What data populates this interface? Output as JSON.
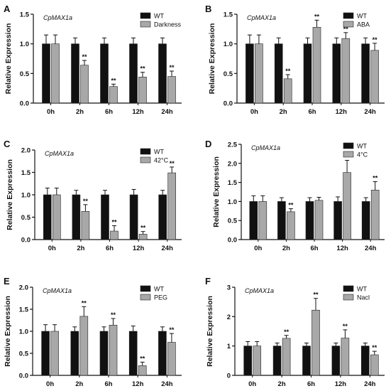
{
  "colors": {
    "wt_bar": "#111111",
    "treatment_bar": "#a8a8a8",
    "error_bar": "#111111",
    "axis": "#111111"
  },
  "chart_data": [
    {
      "type": "bar",
      "panel_label": "A",
      "gene": "CpMAX1a",
      "ylabel": "Relative Expression",
      "ylim": [
        0,
        1.5
      ],
      "yticks": [
        0.0,
        0.5,
        1.0,
        1.5
      ],
      "yticklabels": [
        "0.0",
        "0.5",
        "1.0",
        "1.5"
      ],
      "categories": [
        "0h",
        "2h",
        "6h",
        "12h",
        "24h"
      ],
      "legend_position": "top-right",
      "series": [
        {
          "name": "WT",
          "values": [
            1.0,
            1.0,
            1.0,
            1.0,
            1.0
          ],
          "errors": [
            0.15,
            0.1,
            0.1,
            0.1,
            0.1
          ],
          "significance": [
            "",
            "",
            "",
            "",
            ""
          ]
        },
        {
          "name": "Darkness",
          "values": [
            1.0,
            0.64,
            0.28,
            0.44,
            0.45
          ],
          "errors": [
            0.15,
            0.08,
            0.04,
            0.08,
            0.09
          ],
          "significance": [
            "",
            "**",
            "**",
            "**",
            "**"
          ]
        }
      ]
    },
    {
      "type": "bar",
      "panel_label": "B",
      "gene": "CpMAX1a",
      "ylabel": "Relative Expression",
      "ylim": [
        0,
        1.5
      ],
      "yticks": [
        0.0,
        0.5,
        1.0,
        1.5
      ],
      "yticklabels": [
        "0.0",
        "0.5",
        "1.0",
        "1.5"
      ],
      "categories": [
        "0h",
        "2h",
        "6h",
        "12h",
        "24h"
      ],
      "legend_position": "top-right",
      "series": [
        {
          "name": "WT",
          "values": [
            1.0,
            1.0,
            1.0,
            1.0,
            1.0
          ],
          "errors": [
            0.15,
            0.1,
            0.1,
            0.1,
            0.1
          ],
          "significance": [
            "",
            "",
            "",
            "",
            ""
          ]
        },
        {
          "name": "ABA",
          "values": [
            1.0,
            0.41,
            1.28,
            1.09,
            0.89
          ],
          "errors": [
            0.15,
            0.07,
            0.12,
            0.1,
            0.12
          ],
          "significance": [
            "",
            "**",
            "**",
            "**",
            "**"
          ]
        }
      ]
    },
    {
      "type": "bar",
      "panel_label": "C",
      "gene": "CpMAX1a",
      "ylabel": "Relative Expression",
      "ylim": [
        0,
        2.0
      ],
      "yticks": [
        0.0,
        0.5,
        1.0,
        1.5,
        2.0
      ],
      "yticklabels": [
        "0.0",
        "0.5",
        "1.0",
        "1.5",
        "2.0"
      ],
      "categories": [
        "0h",
        "2h",
        "6h",
        "12h",
        "24h"
      ],
      "legend_position": "top-right",
      "series": [
        {
          "name": "WT",
          "values": [
            1.0,
            1.0,
            1.0,
            1.0,
            1.0
          ],
          "errors": [
            0.15,
            0.1,
            0.1,
            0.12,
            0.1
          ],
          "significance": [
            "",
            "",
            "",
            "",
            ""
          ]
        },
        {
          "name": "42°C",
          "values": [
            1.0,
            0.63,
            0.19,
            0.12,
            1.49
          ],
          "errors": [
            0.15,
            0.15,
            0.12,
            0.06,
            0.13
          ],
          "significance": [
            "",
            "**",
            "**",
            "**",
            "**"
          ]
        }
      ]
    },
    {
      "type": "bar",
      "panel_label": "D",
      "gene": "CpMAX1a",
      "ylabel": "Relative Expression",
      "ylim": [
        0,
        2.5
      ],
      "yticks": [
        0.0,
        0.5,
        1.0,
        1.5,
        2.0,
        2.5
      ],
      "yticklabels": [
        "0.0",
        "0.5",
        "1.0",
        "1.5",
        "2.0",
        "2.5"
      ],
      "categories": [
        "0h",
        "2h",
        "6h",
        "12h",
        "24h"
      ],
      "legend_position": "top-right",
      "series": [
        {
          "name": "WT",
          "values": [
            1.0,
            1.0,
            1.0,
            1.0,
            1.0
          ],
          "errors": [
            0.15,
            0.1,
            0.1,
            0.12,
            0.1
          ],
          "significance": [
            "",
            "",
            "",
            "",
            ""
          ]
        },
        {
          "name": "4°C",
          "values": [
            1.0,
            0.73,
            1.03,
            1.76,
            1.3
          ],
          "errors": [
            0.15,
            0.08,
            0.08,
            0.32,
            0.22
          ],
          "significance": [
            "",
            "**",
            "",
            "**",
            "**"
          ]
        }
      ]
    },
    {
      "type": "bar",
      "panel_label": "E",
      "gene": "CpMAX1a",
      "ylabel": "Relative Expression",
      "ylim": [
        0,
        2.0
      ],
      "yticks": [
        0.0,
        0.5,
        1.0,
        1.5,
        2.0
      ],
      "yticklabels": [
        "0.0",
        "0.5",
        "1.0",
        "1.5",
        "2.0"
      ],
      "categories": [
        "0h",
        "2h",
        "6h",
        "12h",
        "24h"
      ],
      "legend_position": "top-right",
      "series": [
        {
          "name": "WT",
          "values": [
            1.0,
            1.0,
            1.0,
            1.0,
            1.0
          ],
          "errors": [
            0.15,
            0.1,
            0.1,
            0.12,
            0.1
          ],
          "significance": [
            "",
            "",
            "",
            "",
            ""
          ]
        },
        {
          "name": "PEG",
          "values": [
            1.0,
            1.34,
            1.14,
            0.22,
            0.75
          ],
          "errors": [
            0.15,
            0.22,
            0.15,
            0.08,
            0.2
          ],
          "significance": [
            "",
            "**",
            "**",
            "**",
            "**"
          ]
        }
      ]
    },
    {
      "type": "bar",
      "panel_label": "F",
      "gene": "CpMAX1a",
      "ylabel": "Relative Expression",
      "ylim": [
        0,
        3
      ],
      "yticks": [
        0,
        1,
        2,
        3
      ],
      "yticklabels": [
        "0",
        "1",
        "2",
        "3"
      ],
      "categories": [
        "0h",
        "2h",
        "6h",
        "12h",
        "24h"
      ],
      "legend_position": "top-right",
      "series": [
        {
          "name": "WT",
          "values": [
            1.0,
            1.0,
            1.0,
            1.0,
            1.0
          ],
          "errors": [
            0.15,
            0.1,
            0.1,
            0.1,
            0.1
          ],
          "significance": [
            "",
            "",
            "",
            "",
            ""
          ]
        },
        {
          "name": "Nacl",
          "values": [
            1.0,
            1.26,
            2.22,
            1.27,
            0.7
          ],
          "errors": [
            0.15,
            0.1,
            0.4,
            0.28,
            0.12
          ],
          "significance": [
            "",
            "**",
            "**",
            "**",
            "**"
          ]
        }
      ]
    }
  ]
}
